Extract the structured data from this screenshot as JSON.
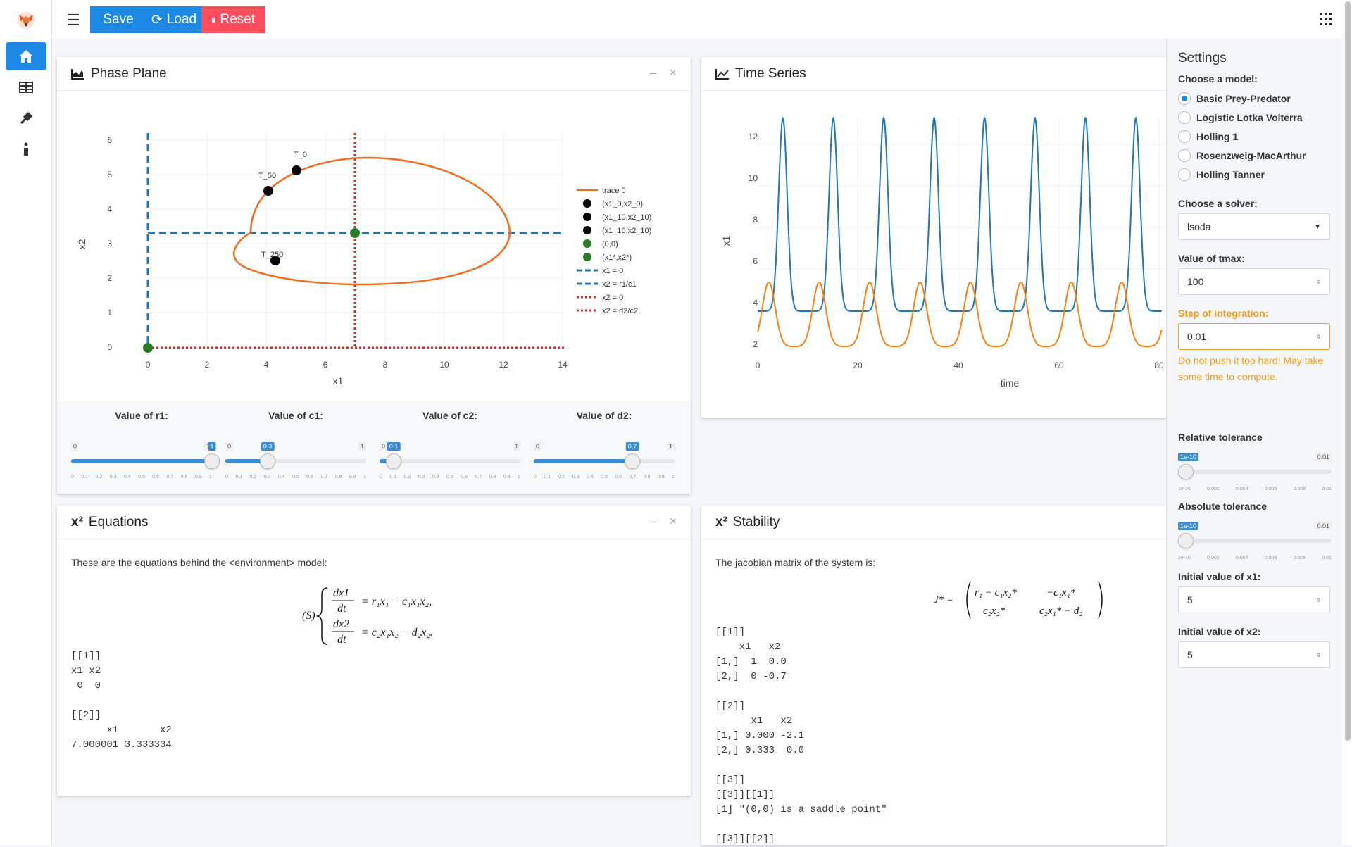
{
  "header": {
    "save_label": "Save",
    "load_label": "Load",
    "reset_label": "Reset"
  },
  "phase_card": {
    "title": "Phase Plane",
    "xlabel": "x1",
    "ylabel": "x2",
    "x_ticks": [
      "0",
      "2",
      "4",
      "6",
      "8",
      "10",
      "12",
      "14"
    ],
    "y_ticks": [
      "0",
      "1",
      "2",
      "3",
      "4",
      "5",
      "6"
    ],
    "point_labels": [
      "T_0",
      "T_50",
      "T_250"
    ],
    "legend": [
      "trace 0",
      "(x1_0,x2_0)",
      "(x1_10,x2_10)",
      "(x1_10,x2_10)",
      "(0,0)",
      "(x1*,x2*)",
      "x1 = 0",
      "x2 = r1/c1",
      "x2 = 0",
      "x2 = d2/c2"
    ],
    "sliders": [
      {
        "title": "Value of r1:",
        "value": 1,
        "value_label": "1",
        "min": "0",
        "max": "1"
      },
      {
        "title": "Value of c1:",
        "value": 0.3,
        "value_label": "0.3",
        "min": "0",
        "max": "1"
      },
      {
        "title": "Value of c2:",
        "value": 0.1,
        "value_label": "0.1",
        "min": "0",
        "max": "1"
      },
      {
        "title": "Value of d2:",
        "value": 0.7,
        "value_label": "0.7",
        "min": "0",
        "max": "1"
      }
    ],
    "slider_ticks": [
      "0",
      "0.1",
      "0.2",
      "0.3",
      "0.4",
      "0.5",
      "0.6",
      "0.7",
      "0.8",
      "0.9",
      "1"
    ]
  },
  "timeseries_card": {
    "title": "Time Series",
    "xlabel": "time",
    "ylabel": "x1",
    "x_ticks": [
      "0",
      "20",
      "40",
      "60",
      "80"
    ],
    "y_ticks": [
      "2",
      "4",
      "6",
      "8",
      "10",
      "12"
    ]
  },
  "equations_card": {
    "title": "Equations",
    "intro": "These are the equations behind the <environment> model:",
    "output": "[[1]]\nx1 x2\n 0  0\n\n[[2]]\n      x1       x2\n7.000001 3.333334"
  },
  "stability_card": {
    "title": "Stability",
    "intro": "The jacobian matrix of the system is:",
    "output": "[[1]]\n    x1   x2\n[1,]  1  0.0\n[2,]  0 -0.7\n\n[[2]]\n      x1   x2\n[1,] 0.000 -2.1\n[2,] 0.333  0.0\n\n[[3]]\n[[3]][[1]]\n[1] \"(0,0) is a saddle point\"\n\n[[3]][[2]]"
  },
  "settings": {
    "title": "Settings",
    "model_label": "Choose a model:",
    "models": [
      "Basic Prey-Predator",
      "Logistic Lotka Volterra",
      "Holling 1",
      "Rosenzweig-MacArthur",
      "Holling Tanner"
    ],
    "selected_model": "Basic Prey-Predator",
    "solver_label": "Choose a solver:",
    "solver_value": "lsoda",
    "tmax_label": "Value of tmax:",
    "tmax_value": "100",
    "step_label": "Step of integration:",
    "step_value": "0,01",
    "step_warning": "Do not push it too hard! May take some time to compute.",
    "rtol_label": "Relative tolerance",
    "atol_label": "Absolute tolerance",
    "tol_min": "1e-10",
    "tol_max": "0.01",
    "tol_ticks": [
      "1e-10",
      "0.002",
      "0.004",
      "0.006",
      "0.008",
      "0.01"
    ],
    "x1_label": "Initial value of x1:",
    "x1_value": "5",
    "x2_label": "Initial value of x2:",
    "x2_value": "5"
  },
  "colors": {
    "accent": "#1e88e5",
    "danger": "#ff4d5e",
    "warning": "#f39c12",
    "prey": "#1f77b4",
    "predator": "#ff7f0e",
    "nullcline_red": "#d62728",
    "equilibrium": "#2ca02c"
  }
}
